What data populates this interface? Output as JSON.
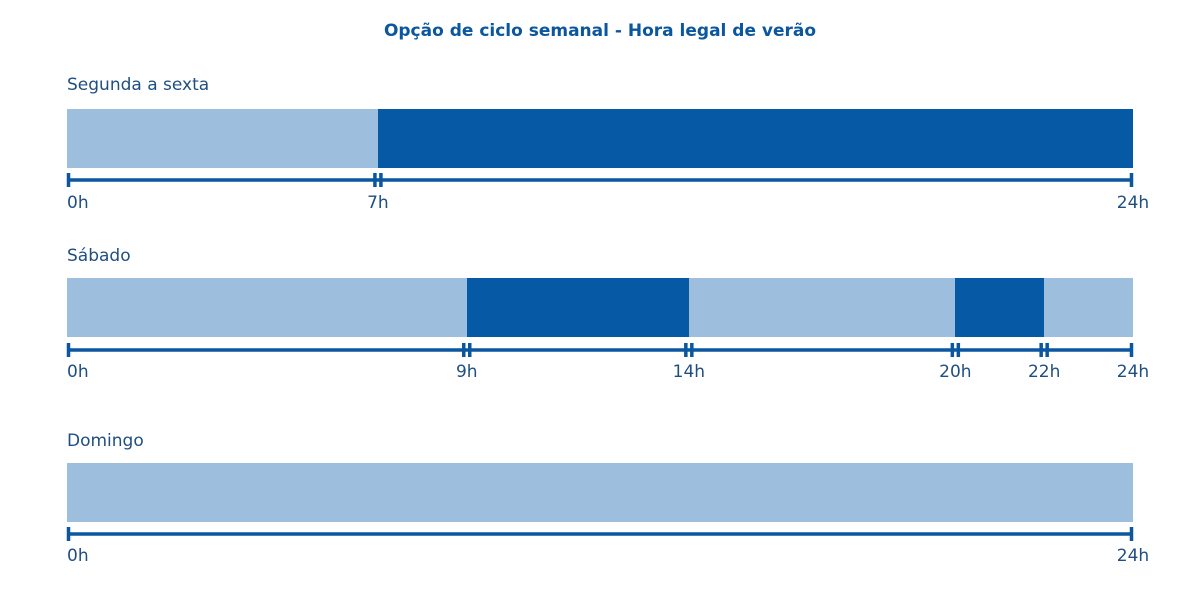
{
  "title": "Opção de ciclo semanal - Hora legal de verão",
  "colors": {
    "off_peak": "#9dbfdd",
    "peak": "#0659a4",
    "axis": "#0a57a0",
    "text": "#1f4f80"
  },
  "rows": [
    {
      "label": "Segunda a sexta",
      "segments": [
        {
          "start": 0,
          "end": 7,
          "kind": "off_peak"
        },
        {
          "start": 7,
          "end": 24,
          "kind": "peak"
        }
      ],
      "ticks": [
        {
          "hour": 0,
          "label": "0h"
        },
        {
          "hour": 7,
          "label": "7h"
        },
        {
          "hour": 24,
          "label": "24h"
        }
      ]
    },
    {
      "label": "Sábado",
      "segments": [
        {
          "start": 0,
          "end": 9,
          "kind": "off_peak"
        },
        {
          "start": 9,
          "end": 14,
          "kind": "peak"
        },
        {
          "start": 14,
          "end": 20,
          "kind": "off_peak"
        },
        {
          "start": 20,
          "end": 22,
          "kind": "peak"
        },
        {
          "start": 22,
          "end": 24,
          "kind": "off_peak"
        }
      ],
      "ticks": [
        {
          "hour": 0,
          "label": "0h"
        },
        {
          "hour": 9,
          "label": "9h"
        },
        {
          "hour": 14,
          "label": "14h"
        },
        {
          "hour": 20,
          "label": "20h"
        },
        {
          "hour": 22,
          "label": "22h"
        },
        {
          "hour": 24,
          "label": "24h"
        }
      ]
    },
    {
      "label": "Domingo",
      "segments": [
        {
          "start": 0,
          "end": 24,
          "kind": "off_peak"
        }
      ],
      "ticks": [
        {
          "hour": 0,
          "label": "0h"
        },
        {
          "hour": 24,
          "label": "24h"
        }
      ]
    }
  ]
}
